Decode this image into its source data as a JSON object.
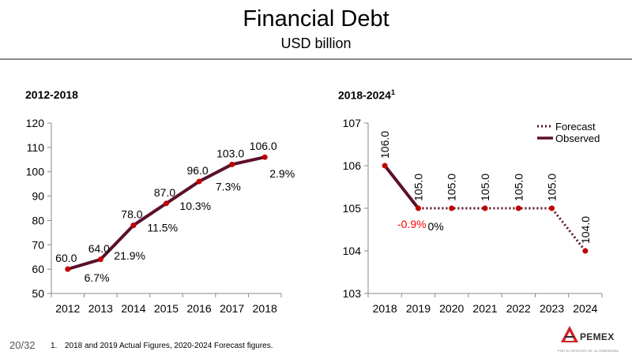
{
  "header": {
    "title": "Financial Debt",
    "subtitle": "USD billion"
  },
  "footer": {
    "page_number": "20/32",
    "footnote_number": "1.",
    "footnote_text": "2018 and 2019 Actual Figures, 2020-2024 Forecast figures.",
    "logo_text": "PEMEX",
    "logo_tagline": "POR EL RESCATE DE LA SOBERANÍA",
    "logo_icon": "pemex-eagle-icon"
  },
  "colors": {
    "series_line": "#5b0f2c",
    "marker": "#c00000",
    "negative_label": "#ff0000",
    "rule": "#888888"
  },
  "chart_data": [
    {
      "type": "line",
      "title": "2012-2018",
      "categories": [
        "2012",
        "2013",
        "2014",
        "2015",
        "2016",
        "2017",
        "2018"
      ],
      "values": [
        60.0,
        64.0,
        78.0,
        87.0,
        96.0,
        103.0,
        106.0
      ],
      "value_labels": [
        "60.0",
        "64.0",
        "78.0",
        "87.0",
        "96.0",
        "103.0",
        "106.0"
      ],
      "growth_labels": [
        "6.7%",
        "21.9%",
        "11.5%",
        "10.3%",
        "7.3%",
        "2.9%"
      ],
      "ylim": [
        50,
        120
      ],
      "yticks": [
        "50",
        "60",
        "70",
        "80",
        "90",
        "100",
        "110",
        "120"
      ],
      "xlabel": "",
      "ylabel": "",
      "grid": false
    },
    {
      "type": "line",
      "title": "2018-2024",
      "title_superscript": "1",
      "categories": [
        "2018",
        "2019",
        "2020",
        "2021",
        "2022",
        "2023",
        "2024"
      ],
      "values": [
        106.0,
        105.0,
        105.0,
        105.0,
        105.0,
        105.0,
        104.0
      ],
      "value_labels": [
        "106.0",
        "105.0",
        "105.0",
        "105.0",
        "105.0",
        "105.0",
        "104.0"
      ],
      "growth_labels": [
        "-0.9%",
        "0%"
      ],
      "series": [
        {
          "name": "Forecast",
          "style": "dotted",
          "from_index": 1,
          "to_index": 6
        },
        {
          "name": "Observed",
          "style": "solid",
          "from_index": 0,
          "to_index": 1
        }
      ],
      "ylim": [
        103,
        107
      ],
      "yticks": [
        "103",
        "104",
        "105",
        "106",
        "107"
      ],
      "legend": "top-right",
      "xlabel": "",
      "ylabel": "",
      "grid": false
    }
  ]
}
